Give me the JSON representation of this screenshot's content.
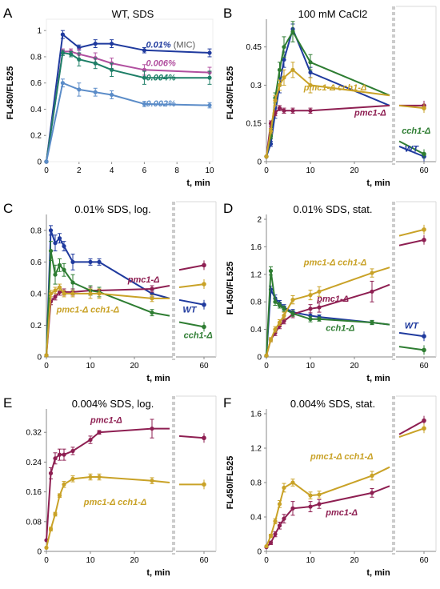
{
  "palette": {
    "WT": "#1f3a9e",
    "pmc1": "#8e1f52",
    "cch1": "#2e7d32",
    "double": "#c9a227",
    "mic": "#1f3a9e",
    "c006": "#b14f9f",
    "c004": "#1e7f67",
    "c002": "#5b8cc8"
  },
  "chart_data": [
    {
      "type": "line",
      "panel_label": "A",
      "title": "WT, SDS",
      "xlabel": "t, min",
      "ylabel": "FL450/FL525",
      "xlim": [
        0,
        10
      ],
      "ylim": [
        0,
        1.05
      ],
      "xticks": [
        "0",
        "2",
        "4",
        "6",
        "8",
        "10"
      ],
      "yticks": [
        "0",
        "0.2",
        "0.4",
        "0.6",
        "0.8",
        "1"
      ],
      "broken_axis": false,
      "series": [
        {
          "label_main": "0.01%",
          "label_extra": " (MIC)",
          "color_key": "mic",
          "x": [
            0,
            1,
            2,
            3,
            4,
            6,
            10
          ],
          "y": [
            0,
            0.97,
            0.87,
            0.9,
            0.9,
            0.85,
            0.83
          ],
          "err": [
            0,
            0.03,
            0.02,
            0.03,
            0.03,
            0.02,
            0.03
          ]
        },
        {
          "label_main": "0.006%",
          "label_extra": "",
          "color_key": "c006",
          "x": [
            0,
            1,
            1.5,
            2,
            3,
            4,
            6,
            10
          ],
          "y": [
            0,
            0.84,
            0.84,
            0.82,
            0.79,
            0.75,
            0.7,
            0.68
          ],
          "err": [
            0,
            0.02,
            0.02,
            0.04,
            0.04,
            0.04,
            0.04,
            0.04
          ]
        },
        {
          "label_main": "0.004%",
          "label_extra": "",
          "color_key": "c004",
          "x": [
            0,
            1,
            1.5,
            2,
            3,
            4,
            6,
            10
          ],
          "y": [
            0,
            0.83,
            0.82,
            0.78,
            0.75,
            0.7,
            0.64,
            0.64
          ],
          "err": [
            0,
            0.02,
            0.02,
            0.05,
            0.04,
            0.05,
            0.05,
            0.05
          ]
        },
        {
          "label_main": "0.002%",
          "label_extra": "",
          "color_key": "c002",
          "x": [
            0,
            1,
            2,
            3,
            4,
            6,
            10
          ],
          "y": [
            0,
            0.6,
            0.55,
            0.53,
            0.51,
            0.44,
            0.43
          ],
          "err": [
            0,
            0.03,
            0.05,
            0.03,
            0.03,
            0.02,
            0.02
          ]
        }
      ],
      "series_labels": [
        {
          "series": 0,
          "x": 6.1,
          "y": 0.87
        },
        {
          "series": 1,
          "x": 6.1,
          "y": 0.73
        },
        {
          "series": 2,
          "x": 6.1,
          "y": 0.62
        },
        {
          "series": 3,
          "x": 6.1,
          "y": 0.42
        }
      ]
    },
    {
      "type": "line",
      "panel_label": "B",
      "title": "100 mM CaCl2",
      "xlabel": "t, min",
      "ylabel": "FL450/FL525",
      "xlim": [
        0,
        28
      ],
      "ylim": [
        0,
        0.54
      ],
      "xticks": [
        "0",
        "10",
        "20"
      ],
      "yticks": [
        "0",
        "0.15",
        "0.3",
        "0.45"
      ],
      "broken_axis": true,
      "right_ticks": [
        "60"
      ],
      "series": [
        {
          "label_main": "WT",
          "label_extra": "",
          "color_key": "WT",
          "x": [
            0,
            1,
            2,
            3,
            4,
            6,
            10,
            28
          ],
          "y": [
            0.02,
            0.07,
            0.19,
            0.3,
            0.4,
            0.52,
            0.35,
            0.22
          ],
          "err": [
            0,
            0.01,
            0.02,
            0.03,
            0.03,
            0.02,
            0.02,
            0
          ],
          "tail": [
            0.06,
            0.02
          ]
        },
        {
          "label_main": "pmc1-Δ",
          "label_extra": "",
          "color_key": "pmc1",
          "x": [
            0,
            1,
            2,
            3,
            4,
            6,
            10,
            28
          ],
          "y": [
            0.02,
            0.15,
            0.19,
            0.21,
            0.2,
            0.2,
            0.2,
            0.22
          ],
          "err": [
            0,
            0.01,
            0.01,
            0.01,
            0.01,
            0.01,
            0.01,
            0
          ],
          "tail": [
            0.22,
            0.22
          ]
        },
        {
          "label_main": "cch1-Δ",
          "label_extra": "",
          "color_key": "cch1",
          "x": [
            0,
            1,
            2,
            3,
            4,
            6,
            10,
            28
          ],
          "y": [
            0.02,
            0.1,
            0.25,
            0.36,
            0.45,
            0.51,
            0.39,
            0.26
          ],
          "err": [
            0,
            0.01,
            0.02,
            0.03,
            0.04,
            0.04,
            0.03,
            0
          ],
          "tail": [
            0.08,
            0.03
          ]
        },
        {
          "label_main": "pmc1-Δ cch1-Δ",
          "label_extra": "",
          "color_key": "double",
          "x": [
            0,
            1,
            2,
            3,
            4,
            6,
            10,
            28
          ],
          "y": [
            0.02,
            0.12,
            0.24,
            0.3,
            0.33,
            0.36,
            0.3,
            0.26
          ],
          "err": [
            0,
            0.01,
            0.02,
            0.02,
            0.03,
            0.03,
            0.03,
            0
          ],
          "tail": [
            0.22,
            0.21
          ]
        }
      ],
      "series_labels": [
        {
          "series": 3,
          "x": 8.5,
          "y": 0.28
        },
        {
          "series": 1,
          "x": 20,
          "y": 0.18
        },
        {
          "series": 2,
          "x": 30.2,
          "y": 0.11
        },
        {
          "series": 0,
          "x": 30.8,
          "y": 0.04
        }
      ]
    },
    {
      "type": "line",
      "panel_label": "C",
      "title": "0.01% SDS, log.",
      "xlabel": "t, min",
      "ylabel": "",
      "xlim": [
        0,
        28
      ],
      "ylim": [
        0,
        0.87
      ],
      "xticks": [
        "0",
        "10",
        "20"
      ],
      "yticks": [
        "0",
        "0.2",
        "0.4",
        "0.6",
        "0.8"
      ],
      "broken_axis": true,
      "right_ticks": [
        "60"
      ],
      "series": [
        {
          "label_main": "WT",
          "label_extra": "",
          "color_key": "WT",
          "x": [
            0,
            1,
            2,
            3,
            4,
            6,
            10,
            12,
            24,
            28
          ],
          "y": [
            0.01,
            0.8,
            0.72,
            0.75,
            0.7,
            0.6,
            0.6,
            0.6,
            0.4,
            0.37
          ],
          "err": [
            0,
            0.03,
            0.05,
            0.03,
            0.03,
            0.05,
            0.02,
            0.02,
            0.02,
            0
          ],
          "tail": [
            0.36,
            0.33
          ]
        },
        {
          "label_main": "pmc1-Δ",
          "label_extra": "",
          "color_key": "pmc1",
          "x": [
            0,
            1,
            2,
            3,
            4,
            6,
            10,
            12,
            24,
            28
          ],
          "y": [
            0.01,
            0.35,
            0.38,
            0.41,
            0.41,
            0.41,
            0.42,
            0.42,
            0.43,
            0.45
          ],
          "err": [
            0,
            0.02,
            0.02,
            0.02,
            0.02,
            0.02,
            0.02,
            0.02,
            0.02,
            0
          ],
          "tail": [
            0.55,
            0.58
          ]
        },
        {
          "label_main": "cch1-Δ",
          "label_extra": "",
          "color_key": "cch1",
          "x": [
            0,
            1,
            2,
            3,
            4,
            6,
            10,
            12,
            24,
            28
          ],
          "y": [
            0.01,
            0.67,
            0.52,
            0.58,
            0.55,
            0.47,
            0.42,
            0.41,
            0.28,
            0.26
          ],
          "err": [
            0,
            0.06,
            0.06,
            0.04,
            0.04,
            0.05,
            0.03,
            0.03,
            0.02,
            0
          ],
          "tail": [
            0.22,
            0.19
          ]
        },
        {
          "label_main": "pmc1-Δ cch1-Δ",
          "label_extra": "",
          "color_key": "double",
          "x": [
            0,
            1,
            2,
            3,
            4,
            6,
            10,
            12,
            24,
            28
          ],
          "y": [
            0.01,
            0.4,
            0.42,
            0.44,
            0.4,
            0.4,
            0.4,
            0.4,
            0.37,
            0.37
          ],
          "err": [
            0,
            0.02,
            0.02,
            0.02,
            0.02,
            0.02,
            0.03,
            0.03,
            0.02,
            0
          ],
          "tail": [
            0.44,
            0.46
          ]
        }
      ],
      "series_labels": [
        {
          "series": 1,
          "x": 18.5,
          "y": 0.47
        },
        {
          "series": 3,
          "x": 2.3,
          "y": 0.28
        },
        {
          "series": 0,
          "x": 30.4,
          "y": 0.28
        },
        {
          "series": 2,
          "x": 30.6,
          "y": 0.12
        }
      ]
    },
    {
      "type": "line",
      "panel_label": "D",
      "title": "0.01% SDS, stat.",
      "xlabel": "t, min",
      "ylabel": "FL450/FL525",
      "xlim": [
        0,
        28
      ],
      "ylim": [
        0,
        2
      ],
      "xticks": [
        "0",
        "10",
        "20"
      ],
      "yticks": [
        "0",
        "0.4",
        "0.8",
        "1.2",
        "1.6",
        "2"
      ],
      "broken_axis": true,
      "right_ticks": [
        "60"
      ],
      "series": [
        {
          "label_main": "WT",
          "label_extra": "",
          "color_key": "WT",
          "x": [
            0,
            1,
            2,
            3,
            4,
            6,
            10,
            12,
            24,
            28
          ],
          "y": [
            0.02,
            0.98,
            0.85,
            0.78,
            0.72,
            0.65,
            0.6,
            0.58,
            0.5,
            0.47
          ],
          "err": [
            0,
            0.05,
            0.05,
            0.04,
            0.04,
            0.04,
            0.04,
            0.03,
            0.03,
            0
          ],
          "tail": [
            0.35,
            0.3
          ]
        },
        {
          "label_main": "pmc1-Δ",
          "label_extra": "",
          "color_key": "pmc1",
          "x": [
            0,
            1,
            2,
            3,
            4,
            6,
            10,
            12,
            24,
            28
          ],
          "y": [
            0.02,
            0.25,
            0.35,
            0.45,
            0.52,
            0.62,
            0.7,
            0.72,
            0.95,
            1.05
          ],
          "err": [
            0,
            0.03,
            0.04,
            0.04,
            0.04,
            0.05,
            0.06,
            0.07,
            0.15,
            0
          ],
          "tail": [
            1.62,
            1.7
          ]
        },
        {
          "label_main": "cch1-Δ",
          "label_extra": "",
          "color_key": "cch1",
          "x": [
            0,
            1,
            2,
            3,
            4,
            6,
            10,
            12,
            24,
            28
          ],
          "y": [
            0.02,
            1.25,
            0.8,
            0.75,
            0.7,
            0.63,
            0.55,
            0.55,
            0.5,
            0.47
          ],
          "err": [
            0,
            0.06,
            0.05,
            0.04,
            0.04,
            0.04,
            0.04,
            0.03,
            0.03,
            0
          ],
          "tail": [
            0.15,
            0.1
          ]
        },
        {
          "label_main": "pmc1-Δ cch1-Δ",
          "label_extra": "",
          "color_key": "double",
          "x": [
            0,
            1,
            2,
            3,
            4,
            6,
            10,
            12,
            24,
            28
          ],
          "y": [
            0.02,
            0.25,
            0.4,
            0.5,
            0.6,
            0.83,
            0.9,
            0.95,
            1.22,
            1.3
          ],
          "err": [
            0,
            0.03,
            0.04,
            0.04,
            0.05,
            0.06,
            0.07,
            0.07,
            0.06,
            0
          ],
          "tail": [
            1.76,
            1.85
          ]
        }
      ],
      "series_labels": [
        {
          "series": 3,
          "x": 8.5,
          "y": 1.33
        },
        {
          "series": 1,
          "x": 11.5,
          "y": 0.8
        },
        {
          "series": 2,
          "x": 13.5,
          "y": 0.38
        },
        {
          "series": 0,
          "x": 30.8,
          "y": 0.41
        }
      ]
    },
    {
      "type": "line",
      "panel_label": "E",
      "title": "0.004% SDS, log.",
      "xlabel": "t, min",
      "ylabel": "",
      "xlim": [
        0,
        28
      ],
      "ylim": [
        0,
        0.37
      ],
      "xticks": [
        "0",
        "10",
        "20"
      ],
      "yticks": [
        "0",
        "0.08",
        "0.16",
        "0.24",
        "0.32"
      ],
      "broken_axis": true,
      "right_ticks": [
        "60"
      ],
      "series": [
        {
          "label_main": "pmc1-Δ",
          "label_extra": "",
          "color_key": "pmc1",
          "x": [
            0,
            1,
            2,
            3,
            4,
            6,
            10,
            12,
            24,
            28
          ],
          "y": [
            0.03,
            0.21,
            0.25,
            0.26,
            0.26,
            0.27,
            0.3,
            0.32,
            0.33,
            0.33
          ],
          "err": [
            0,
            0.015,
            0.015,
            0.015,
            0.015,
            0.01,
            0.01,
            0.005,
            0.025,
            0
          ],
          "tail": [
            0.31,
            0.305
          ]
        },
        {
          "label_main": "pmc1-Δ cch1-Δ",
          "label_extra": "",
          "color_key": "double",
          "x": [
            0,
            1,
            2,
            3,
            4,
            6,
            10,
            12,
            24,
            28
          ],
          "y": [
            0.01,
            0.06,
            0.1,
            0.15,
            0.18,
            0.195,
            0.2,
            0.2,
            0.19,
            0.185
          ],
          "err": [
            0,
            0.005,
            0.005,
            0.005,
            0.008,
            0.008,
            0.008,
            0.008,
            0.008,
            0
          ],
          "tail": [
            0.18,
            0.18
          ]
        }
      ],
      "series_labels": [
        {
          "series": 0,
          "x": 10,
          "y": 0.345
        },
        {
          "series": 1,
          "x": 8.5,
          "y": 0.125
        }
      ]
    },
    {
      "type": "line",
      "panel_label": "F",
      "title": "0.004% SDS, stat.",
      "xlabel": "t, min",
      "ylabel": "FL450/FL525",
      "xlim": [
        0,
        28
      ],
      "ylim": [
        0,
        1.6
      ],
      "xticks": [
        "0",
        "10",
        "20"
      ],
      "yticks": [
        "0",
        "0.4",
        "0.8",
        "1.2",
        "1.6"
      ],
      "broken_axis": true,
      "right_ticks": [
        "60"
      ],
      "series": [
        {
          "label_main": "pmc1-Δ",
          "label_extra": "",
          "color_key": "pmc1",
          "x": [
            0,
            1,
            2,
            3,
            4,
            6,
            10,
            12,
            24,
            28
          ],
          "y": [
            0.05,
            0.1,
            0.2,
            0.3,
            0.38,
            0.5,
            0.52,
            0.55,
            0.68,
            0.76
          ],
          "err": [
            0,
            0.02,
            0.03,
            0.04,
            0.05,
            0.08,
            0.06,
            0.05,
            0.05,
            0
          ],
          "tail": [
            1.36,
            1.52
          ]
        },
        {
          "label_main": "pmc1-Δ cch1-Δ",
          "label_extra": "",
          "color_key": "double",
          "x": [
            0,
            1,
            2,
            3,
            4,
            6,
            10,
            12,
            24,
            28
          ],
          "y": [
            0.06,
            0.18,
            0.35,
            0.55,
            0.74,
            0.8,
            0.65,
            0.66,
            0.88,
            0.98
          ],
          "err": [
            0,
            0.02,
            0.03,
            0.04,
            0.05,
            0.04,
            0.04,
            0.04,
            0.05,
            0
          ],
          "tail": [
            1.33,
            1.43
          ]
        }
      ],
      "series_labels": [
        {
          "series": 1,
          "x": 10,
          "y": 1.07
        },
        {
          "series": 0,
          "x": 13.5,
          "y": 0.42
        }
      ]
    }
  ]
}
